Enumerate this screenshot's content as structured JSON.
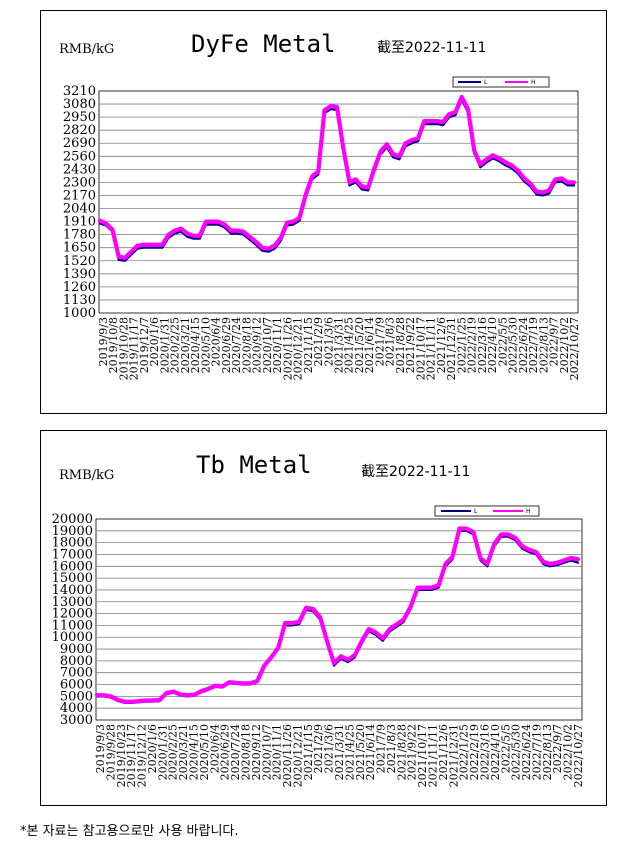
{
  "footnote": "*본 자료는 참고용으로만 사용 바랍니다.",
  "colors": {
    "low": "#000080",
    "high": "#ff00ff",
    "grid": "#7f7f7f"
  },
  "chart_data": [
    {
      "type": "line",
      "unit": "RMB/kG",
      "title": "DyFe Metal",
      "date_note": "截至2022-11-11",
      "legend": [
        "L",
        "H"
      ],
      "ylim": [
        1000,
        3210
      ],
      "yticks": [
        1000,
        1130,
        1260,
        1390,
        1520,
        1650,
        1780,
        1910,
        2040,
        2170,
        2300,
        2430,
        2560,
        2690,
        2820,
        2950,
        3080,
        3210
      ],
      "xticks": [
        "2019/9/3",
        "2019/10/8",
        "2019/10/28",
        "2019/11/17",
        "2019/12/7",
        "2020/1/6",
        "2020/1/31",
        "2020/2/25",
        "2020/3/21",
        "2020/4/15",
        "2020/5/10",
        "2020/6/4",
        "2020/6/29",
        "2020/7/24",
        "2020/8/18",
        "2020/9/12",
        "2020/10/7",
        "2020/11/1",
        "2020/11/26",
        "2020/12/21",
        "2021/1/15",
        "2021/2/9",
        "2021/3/6",
        "2021/3/31",
        "2021/4/25",
        "2021/5/20",
        "2021/6/14",
        "2021/7/9",
        "2021/8/3",
        "2021/8/28",
        "2021/9/22",
        "2021/10/17",
        "2021/11/11",
        "2021/12/6",
        "2021/12/31",
        "2022/1/25",
        "2022/2/19",
        "2022/3/16",
        "2022/4/10",
        "2022/5/5",
        "2022/5/30",
        "2022/6/24",
        "2022/7/19",
        "2022/8/13",
        "2022/9/7",
        "2022/10/2",
        "2022/10/27"
      ],
      "grid": true,
      "series": [
        {
          "name": "L",
          "values": [
            1890,
            1870,
            1810,
            1530,
            1520,
            1580,
            1640,
            1650,
            1650,
            1650,
            1650,
            1750,
            1790,
            1810,
            1760,
            1740,
            1740,
            1880,
            1880,
            1880,
            1850,
            1790,
            1790,
            1780,
            1730,
            1680,
            1620,
            1610,
            1640,
            1720,
            1870,
            1880,
            1920,
            2150,
            2330,
            2380,
            2990,
            3030,
            3020,
            2620,
            2270,
            2300,
            2230,
            2220,
            2410,
            2580,
            2650,
            2550,
            2530,
            2660,
            2690,
            2710,
            2880,
            2880,
            2880,
            2870,
            2950,
            2970,
            3120,
            3000,
            2590,
            2450,
            2500,
            2540,
            2510,
            2470,
            2440,
            2390,
            2310,
            2260,
            2180,
            2170,
            2190,
            2300,
            2310,
            2270,
            2270
          ]
        },
        {
          "name": "H",
          "values": [
            1920,
            1890,
            1830,
            1560,
            1550,
            1610,
            1670,
            1680,
            1680,
            1680,
            1680,
            1780,
            1820,
            1840,
            1790,
            1770,
            1770,
            1910,
            1910,
            1910,
            1880,
            1820,
            1820,
            1810,
            1760,
            1710,
            1650,
            1640,
            1670,
            1750,
            1900,
            1910,
            1950,
            2180,
            2360,
            2410,
            3020,
            3060,
            3050,
            2650,
            2300,
            2330,
            2260,
            2250,
            2440,
            2610,
            2680,
            2580,
            2560,
            2690,
            2720,
            2740,
            2910,
            2910,
            2910,
            2900,
            2980,
            3000,
            3150,
            3030,
            2620,
            2480,
            2530,
            2570,
            2540,
            2500,
            2470,
            2420,
            2340,
            2290,
            2210,
            2200,
            2220,
            2330,
            2340,
            2300,
            2300
          ]
        }
      ]
    },
    {
      "type": "line",
      "unit": "RMB/kG",
      "title": "Tb Metal",
      "date_note": "截至2022-11-11",
      "legend": [
        "L",
        "H"
      ],
      "ylim": [
        3000,
        20000
      ],
      "yticks": [
        3000,
        4000,
        5000,
        6000,
        7000,
        8000,
        9000,
        10000,
        11000,
        12000,
        13000,
        14000,
        15000,
        16000,
        17000,
        18000,
        19000,
        20000
      ],
      "xticks": [
        "2019/9/3",
        "2019/9/28",
        "2019/10/23",
        "2019/11/17",
        "2019/12/12",
        "2020/1/6",
        "2020/1/31",
        "2020/2/25",
        "2020/3/21",
        "2020/4/15",
        "2020/5/10",
        "2020/6/4",
        "2020/6/29",
        "2020/7/24",
        "2020/8/18",
        "2020/9/12",
        "2020/10/7",
        "2020/11/1",
        "2020/11/26",
        "2020/12/21",
        "2021/1/15",
        "2021/2/9",
        "2021/3/6",
        "2021/3/31",
        "2021/4/25",
        "2021/5/20",
        "2021/6/14",
        "2021/7/9",
        "2021/8/3",
        "2021/8/28",
        "2021/9/22",
        "2021/10/17",
        "2021/11/11",
        "2021/12/6",
        "2021/12/31",
        "2022/1/25",
        "2022/2/19",
        "2022/3/16",
        "2022/4/10",
        "2022/5/5",
        "2022/5/30",
        "2022/6/24",
        "2022/7/19",
        "2022/8/13",
        "2022/9/7",
        "2022/10/2",
        "2022/10/27"
      ],
      "grid": true,
      "series": [
        {
          "name": "L",
          "values": [
            5000,
            5000,
            4900,
            4600,
            4450,
            4450,
            4500,
            4550,
            4550,
            4600,
            5200,
            5300,
            5050,
            5000,
            5050,
            5350,
            5550,
            5800,
            5750,
            6100,
            6050,
            6000,
            6000,
            6200,
            7500,
            8200,
            9000,
            11000,
            11000,
            11100,
            12300,
            12200,
            11500,
            9500,
            7600,
            8200,
            7900,
            8300,
            9500,
            10500,
            10200,
            9700,
            10500,
            10900,
            11300,
            12400,
            14000,
            14000,
            14000,
            14200,
            16000,
            16600,
            19000,
            19000,
            18700,
            16500,
            16000,
            17700,
            18500,
            18500,
            18200,
            17500,
            17200,
            17000,
            16200,
            16000,
            16100,
            16300,
            16500,
            16300
          ]
        },
        {
          "name": "H",
          "values": [
            5100,
            5100,
            5000,
            4700,
            4550,
            4550,
            4600,
            4650,
            4650,
            4700,
            5300,
            5400,
            5150,
            5100,
            5150,
            5450,
            5650,
            5900,
            5850,
            6200,
            6150,
            6100,
            6100,
            6300,
            7600,
            8300,
            9100,
            11200,
            11200,
            11300,
            12500,
            12400,
            11700,
            9700,
            7800,
            8400,
            8100,
            8500,
            9700,
            10700,
            10400,
            9900,
            10700,
            11100,
            11500,
            12600,
            14200,
            14200,
            14200,
            14400,
            16200,
            16800,
            19200,
            19200,
            18900,
            16700,
            16200,
            17900,
            18700,
            18700,
            18400,
            17700,
            17400,
            17200,
            16400,
            16200,
            16300,
            16500,
            16700,
            16600
          ]
        }
      ]
    }
  ]
}
